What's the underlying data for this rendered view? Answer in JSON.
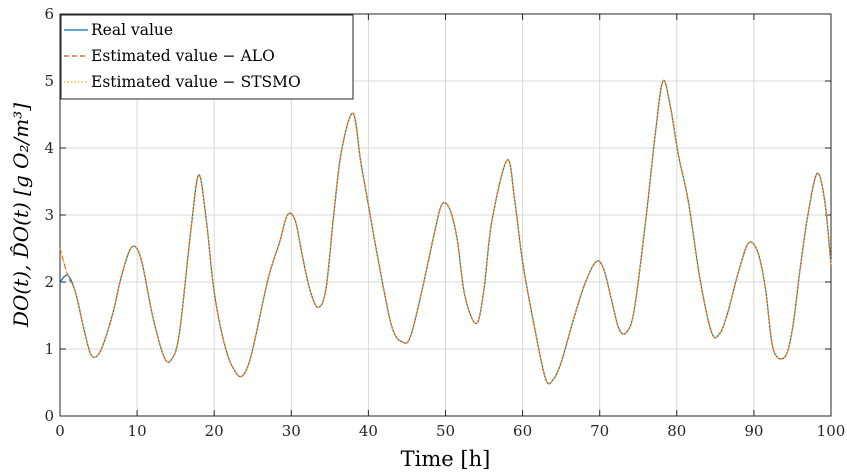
{
  "chart_data": {
    "type": "line",
    "xlabel": "Time [h]",
    "ylabel": "DO(t),  D̂O(t)  [g O₂/m³]",
    "xlim": [
      0,
      100
    ],
    "ylim": [
      0,
      6
    ],
    "x_ticks": [
      0,
      10,
      20,
      30,
      40,
      50,
      60,
      70,
      80,
      90,
      100
    ],
    "y_ticks": [
      0,
      1,
      2,
      3,
      4,
      5,
      6
    ],
    "grid": true,
    "legend_position": "top-left",
    "series": [
      {
        "name": "Real value",
        "color": "#0072BD",
        "style": "solid",
        "x": [
          0,
          1,
          2,
          3,
          4,
          5,
          6,
          7,
          8,
          9.3,
          10.5,
          12,
          13.5,
          14.5,
          15.5,
          17,
          18,
          19,
          20,
          21.5,
          23,
          24,
          25,
          27,
          28.5,
          29.5,
          30.5,
          31.5,
          32.5,
          33.5,
          34.5,
          35.5,
          36.5,
          38,
          39,
          40,
          41,
          43,
          44.5,
          45.5,
          47,
          48.5,
          49.5,
          50.5,
          51.5,
          52.5,
          54,
          55,
          56,
          58,
          59,
          60,
          61.5,
          63,
          64,
          65,
          66.5,
          68,
          69.5,
          70.5,
          71.5,
          72.5,
          73.5,
          74.5,
          76,
          77.2,
          78.2,
          79.2,
          80.2,
          81.5,
          83,
          84.5,
          85.5,
          86.5,
          88,
          89.3,
          90.5,
          91.5,
          92.5,
          94,
          95,
          96,
          97,
          98.2,
          99.2,
          100
        ],
        "y": [
          2.0,
          2.1,
          1.85,
          1.35,
          0.92,
          0.92,
          1.2,
          1.6,
          2.1,
          2.52,
          2.35,
          1.5,
          0.88,
          0.85,
          1.25,
          2.8,
          3.6,
          2.9,
          1.85,
          1.0,
          0.62,
          0.65,
          1.0,
          2.05,
          2.6,
          3.0,
          2.92,
          2.35,
          1.85,
          1.62,
          1.9,
          3.0,
          3.95,
          4.52,
          3.8,
          3.15,
          2.5,
          1.35,
          1.1,
          1.2,
          1.9,
          2.7,
          3.15,
          3.1,
          2.65,
          1.8,
          1.38,
          1.9,
          2.9,
          3.82,
          3.2,
          2.3,
          1.35,
          0.55,
          0.55,
          0.8,
          1.4,
          1.95,
          2.3,
          2.2,
          1.75,
          1.3,
          1.25,
          1.6,
          2.95,
          4.2,
          5.0,
          4.6,
          3.9,
          3.2,
          2.05,
          1.25,
          1.22,
          1.5,
          2.15,
          2.58,
          2.45,
          1.9,
          1.0,
          0.88,
          1.3,
          2.2,
          3.0,
          3.62,
          3.2,
          2.25
        ]
      },
      {
        "name": "Estimated value  −  ALO",
        "color": "#D95319",
        "style": "dashed",
        "x": [
          0,
          1,
          2,
          3,
          4,
          5,
          6,
          7,
          8,
          9.3,
          10.5,
          12,
          13.5,
          14.5,
          15.5,
          17,
          18,
          19,
          20,
          21.5,
          23,
          24,
          25,
          27,
          28.5,
          29.5,
          30.5,
          31.5,
          32.5,
          33.5,
          34.5,
          35.5,
          36.5,
          38,
          39,
          40,
          41,
          43,
          44.5,
          45.5,
          47,
          48.5,
          49.5,
          50.5,
          51.5,
          52.5,
          54,
          55,
          56,
          58,
          59,
          60,
          61.5,
          63,
          64,
          65,
          66.5,
          68,
          69.5,
          70.5,
          71.5,
          72.5,
          73.5,
          74.5,
          76,
          77.2,
          78.2,
          79.2,
          80.2,
          81.5,
          83,
          84.5,
          85.5,
          86.5,
          88,
          89.3,
          90.5,
          91.5,
          92.5,
          94,
          95,
          96,
          97,
          98.2,
          99.2,
          100
        ],
        "y": [
          2.5,
          2.1,
          1.85,
          1.35,
          0.92,
          0.92,
          1.2,
          1.6,
          2.1,
          2.52,
          2.35,
          1.5,
          0.88,
          0.85,
          1.25,
          2.8,
          3.6,
          2.9,
          1.85,
          1.0,
          0.62,
          0.65,
          1.0,
          2.05,
          2.6,
          3.0,
          2.92,
          2.35,
          1.85,
          1.62,
          1.9,
          3.0,
          3.95,
          4.52,
          3.8,
          3.15,
          2.5,
          1.35,
          1.1,
          1.2,
          1.9,
          2.7,
          3.15,
          3.1,
          2.65,
          1.8,
          1.38,
          1.9,
          2.9,
          3.82,
          3.2,
          2.3,
          1.35,
          0.55,
          0.55,
          0.8,
          1.4,
          1.95,
          2.3,
          2.2,
          1.75,
          1.3,
          1.25,
          1.6,
          2.95,
          4.2,
          5.0,
          4.6,
          3.9,
          3.2,
          2.05,
          1.25,
          1.22,
          1.5,
          2.15,
          2.58,
          2.45,
          1.9,
          1.0,
          0.88,
          1.3,
          2.2,
          3.0,
          3.62,
          3.2,
          2.25
        ]
      },
      {
        "name": "Estimated value  −  STSMO",
        "color": "#EDB120",
        "style": "dotted",
        "x": [
          0,
          1,
          2,
          3,
          4,
          5,
          6,
          7,
          8,
          9.3,
          10.5,
          12,
          13.5,
          14.5,
          15.5,
          17,
          18,
          19,
          20,
          21.5,
          23,
          24,
          25,
          27,
          28.5,
          29.5,
          30.5,
          31.5,
          32.5,
          33.5,
          34.5,
          35.5,
          36.5,
          38,
          39,
          40,
          41,
          43,
          44.5,
          45.5,
          47,
          48.5,
          49.5,
          50.5,
          51.5,
          52.5,
          54,
          55,
          56,
          58,
          59,
          60,
          61.5,
          63,
          64,
          65,
          66.5,
          68,
          69.5,
          70.5,
          71.5,
          72.5,
          73.5,
          74.5,
          76,
          77.2,
          78.2,
          79.2,
          80.2,
          81.5,
          83,
          84.5,
          85.5,
          86.5,
          88,
          89.3,
          90.5,
          91.5,
          92.5,
          94,
          95,
          96,
          97,
          98.2,
          99.2,
          100
        ],
        "y": [
          2.5,
          2.1,
          1.85,
          1.35,
          0.92,
          0.92,
          1.2,
          1.6,
          2.1,
          2.52,
          2.35,
          1.5,
          0.88,
          0.85,
          1.25,
          2.8,
          3.6,
          2.9,
          1.85,
          1.0,
          0.62,
          0.65,
          1.0,
          2.05,
          2.6,
          3.0,
          2.92,
          2.35,
          1.85,
          1.62,
          1.9,
          3.0,
          3.95,
          4.52,
          3.8,
          3.15,
          2.5,
          1.35,
          1.1,
          1.2,
          1.9,
          2.7,
          3.15,
          3.1,
          2.65,
          1.8,
          1.38,
          1.9,
          2.9,
          3.82,
          3.2,
          2.3,
          1.35,
          0.55,
          0.55,
          0.8,
          1.4,
          1.95,
          2.3,
          2.2,
          1.75,
          1.3,
          1.25,
          1.6,
          2.95,
          4.2,
          5.0,
          4.6,
          3.9,
          3.2,
          2.05,
          1.25,
          1.22,
          1.5,
          2.15,
          2.58,
          2.45,
          1.9,
          1.0,
          0.88,
          1.3,
          2.2,
          3.0,
          3.62,
          3.2,
          2.25
        ]
      }
    ]
  }
}
